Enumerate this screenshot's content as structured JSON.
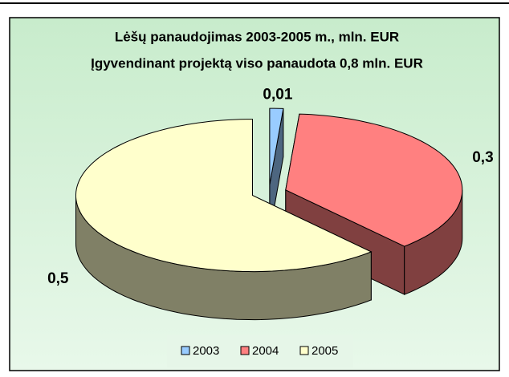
{
  "chart_data": {
    "type": "pie",
    "title": "Lėšų panaudojimas 2003-2005 m., mln. EUR",
    "subtitle": "Įgyvendinant projektą viso panaudota 0,8 mln. EUR",
    "categories": [
      "2003",
      "2004",
      "2005"
    ],
    "values": [
      0.01,
      0.3,
      0.5
    ],
    "value_labels": [
      "0,01",
      "0,3",
      "0,5"
    ],
    "colors": [
      "#99ccff",
      "#ff8080",
      "#ffffcc"
    ],
    "legend": "bottom"
  }
}
